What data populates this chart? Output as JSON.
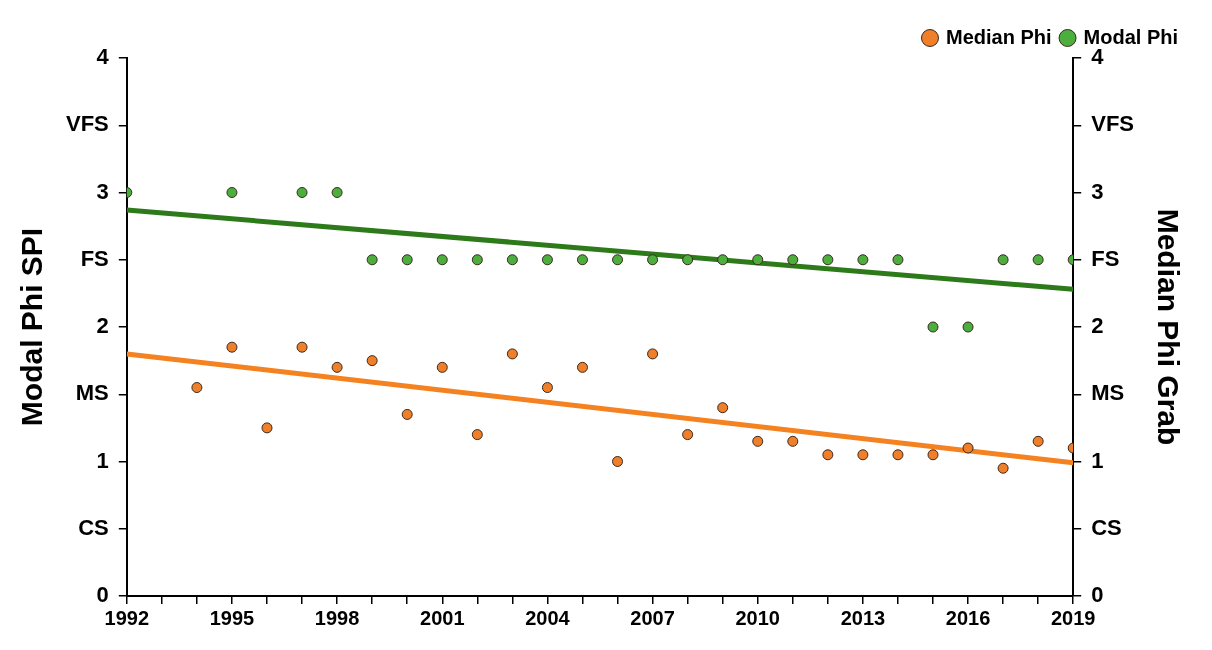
{
  "chart_data": {
    "type": "scatter",
    "ylabel": "Modal Phi SPI",
    "y2label": "Median Phi Grab",
    "xlim": [
      1992,
      2019
    ],
    "xticks": [
      1992,
      {
        "value": 1993,
        "label": null
      },
      {
        "value": 1994,
        "label": null
      },
      1995,
      {
        "value": 1996,
        "label": null
      },
      {
        "value": 1997,
        "label": null
      },
      1998,
      {
        "value": 1999,
        "label": null
      },
      {
        "value": 2000,
        "label": null
      },
      2001,
      {
        "value": 2002,
        "label": null
      },
      {
        "value": 2003,
        "label": null
      },
      2004,
      {
        "value": 2005,
        "label": null
      },
      {
        "value": 2006,
        "label": null
      },
      2007,
      {
        "value": 2008,
        "label": null
      },
      {
        "value": 2009,
        "label": null
      },
      2010,
      {
        "value": 2011,
        "label": null
      },
      {
        "value": 2012,
        "label": null
      },
      2013,
      {
        "value": 2014,
        "label": null
      },
      {
        "value": 2015,
        "label": null
      },
      2016,
      {
        "value": 2017,
        "label": null
      },
      {
        "value": 2018,
        "label": null
      },
      2019
    ],
    "ylim": [
      0,
      4
    ],
    "yticks": [
      0,
      {
        "value": 0.5,
        "label": "CS"
      },
      1,
      {
        "value": 1.5,
        "label": "MS"
      },
      2,
      {
        "value": 2.5,
        "label": "FS"
      },
      3,
      {
        "value": 3.5,
        "label": "VFS"
      },
      4
    ],
    "y2lim": [
      0,
      4
    ],
    "y2ticks": [
      0,
      {
        "value": 0.5,
        "label": "CS"
      },
      1,
      {
        "value": 1.5,
        "label": "MS"
      },
      2,
      {
        "value": 2.5,
        "label": "FS"
      },
      3,
      {
        "value": 3.5,
        "label": "VFS"
      },
      4
    ],
    "legend": "top right",
    "marker": "circle",
    "grid": false,
    "series": [
      {
        "name": "Median Phi",
        "color": "#f07f2a",
        "x": [
          1994,
          1995,
          1996,
          1997,
          1998,
          1999,
          2000,
          2001,
          2002,
          2003,
          2004,
          2005,
          2006,
          2007,
          2008,
          2009,
          2010,
          2011,
          2012,
          2013,
          2014,
          2015,
          2016,
          2017,
          2018,
          2019
        ],
        "values": [
          1.55,
          1.85,
          1.25,
          1.85,
          1.7,
          1.75,
          1.35,
          1.7,
          1.2,
          1.8,
          1.55,
          1.7,
          1.0,
          1.8,
          1.2,
          1.4,
          1.15,
          1.15,
          1.05,
          1.05,
          1.05,
          1.05,
          1.1,
          0.95,
          1.15,
          1.1
        ]
      },
      {
        "name": "Modal Phi",
        "color": "#4cae3c",
        "x": [
          1992,
          1995,
          1997,
          1998,
          1999,
          2000,
          2001,
          2002,
          2003,
          2004,
          2005,
          2006,
          2007,
          2008,
          2009,
          2010,
          2011,
          2012,
          2013,
          2014,
          2015,
          2016,
          2017,
          2018,
          2019
        ],
        "values": [
          3,
          3,
          3,
          3,
          2.5,
          2.5,
          2.5,
          2.5,
          2.5,
          2.5,
          2.5,
          2.5,
          2.5,
          2.5,
          2.5,
          2.5,
          2.5,
          2.5,
          2.5,
          2.5,
          2,
          2,
          2.5,
          2.5,
          2.5
        ]
      },
      {
        "type": "line",
        "marker": "none",
        "color": "#2d7a1a",
        "x": [
          1992,
          2019
        ],
        "values": [
          2.87,
          2.28
        ]
      },
      {
        "type": "line",
        "marker": "none",
        "color": "#f58220",
        "x": [
          1992,
          2019
        ],
        "values": [
          1.8,
          0.99
        ]
      }
    ]
  }
}
